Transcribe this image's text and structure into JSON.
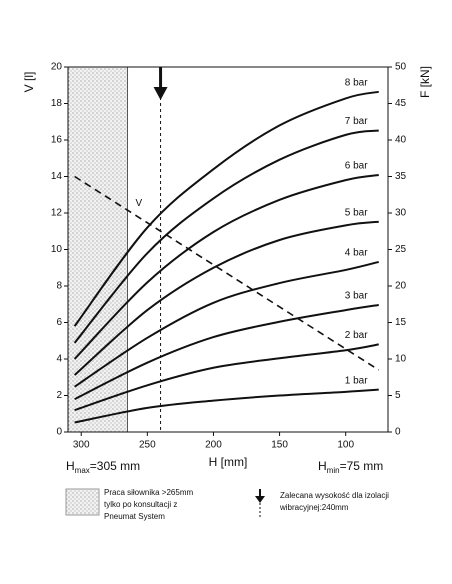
{
  "chart_data": {
    "type": "line",
    "x_label": "H [mm]",
    "y_label": "V [l]",
    "y2_label": "F [kN]",
    "x": [
      305,
      250,
      200,
      150,
      100,
      75
    ],
    "xlim": [
      310,
      68
    ],
    "xticks": [
      300,
      250,
      200,
      150,
      100
    ],
    "ylim": [
      0,
      20
    ],
    "yticks": [
      0,
      2,
      4,
      6,
      8,
      10,
      12,
      14,
      16,
      18,
      20
    ],
    "y2lim": [
      0,
      50
    ],
    "y2ticks": [
      0,
      5,
      10,
      15,
      20,
      25,
      30,
      35,
      40,
      45,
      50
    ],
    "series": [
      {
        "name": "8 bar",
        "color": "#111111",
        "axis": "y2",
        "values": [
          14.5,
          28,
          36,
          42,
          45.7,
          46.6
        ]
      },
      {
        "name": "7 bar",
        "color": "#111111",
        "axis": "y2",
        "values": [
          12.2,
          24.5,
          32,
          37.3,
          40.7,
          41.3
        ]
      },
      {
        "name": "6 bar",
        "color": "#111111",
        "axis": "y2",
        "values": [
          10,
          20.5,
          27.4,
          31.8,
          34.5,
          35.2
        ]
      },
      {
        "name": "5 bar",
        "color": "#111111",
        "axis": "y2",
        "values": [
          7.8,
          16.7,
          22.5,
          26.3,
          28.3,
          28.8
        ]
      },
      {
        "name": "4 bar",
        "color": "#111111",
        "axis": "y2",
        "values": [
          6.2,
          12.9,
          17.7,
          20.4,
          22.2,
          23.3
        ]
      },
      {
        "name": "3 bar",
        "color": "#111111",
        "axis": "y2",
        "values": [
          4.5,
          9.5,
          13,
          15.1,
          16.7,
          17.4
        ]
      },
      {
        "name": "2 bar",
        "color": "#111111",
        "axis": "y2",
        "values": [
          3,
          6.4,
          8.8,
          10.1,
          11.2,
          12
        ]
      },
      {
        "name": "1 bar",
        "color": "#111111",
        "axis": "y2",
        "values": [
          1.3,
          3.3,
          4.3,
          5,
          5.5,
          5.8
        ]
      },
      {
        "name": "V",
        "color": "#111111",
        "dashed": true,
        "values": [
          14,
          null,
          null,
          null,
          null,
          3.4
        ]
      }
    ],
    "shaded_region": [
      310,
      265
    ],
    "recommended_height": 240,
    "hmax": {
      "symbol": "H",
      "sub": "max",
      "text": "=305 mm"
    },
    "hmin": {
      "symbol": "H",
      "sub": "min",
      "text": "=75 mm"
    },
    "legend": {
      "shaded": [
        "Praca siłownika >265mm",
        "tylko po konsultacji z",
        "Pneumat System"
      ],
      "arrow": [
        "Zalecana wysokość dla izolacji",
        "wibracyjnej:240mm"
      ]
    }
  }
}
